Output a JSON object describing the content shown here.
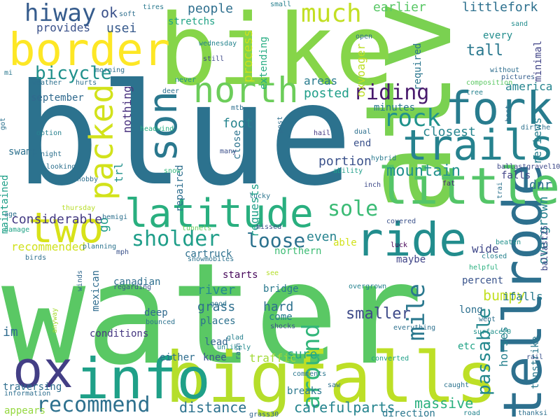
{
  "words": [
    {
      "text": "water",
      "color": "#5ac864"
    },
    {
      "text": "blue",
      "color": "#2c728e"
    },
    {
      "text": "atv",
      "color": "#7ad151"
    },
    {
      "text": "bike",
      "color": "#86d549"
    },
    {
      "text": "big",
      "color": "#b5de2b"
    },
    {
      "text": "falls",
      "color": "#bddf26"
    },
    {
      "text": "tellrode",
      "color": "#2d708e"
    },
    {
      "text": "info",
      "color": "#1fa088"
    },
    {
      "text": "border",
      "color": "#fde725"
    },
    {
      "text": "trails",
      "color": "#26828e"
    },
    {
      "text": "fork",
      "color": "#287c8e"
    },
    {
      "text": "latitude",
      "color": "#29af7f"
    },
    {
      "text": "little",
      "color": "#54c568"
    },
    {
      "text": "ride",
      "color": "#228d8d"
    },
    {
      "text": "two",
      "color": "#d8e219"
    },
    {
      "text": "ox",
      "color": "#433e85"
    },
    {
      "text": "north",
      "color": "#6ccd5a"
    },
    {
      "text": "son",
      "color": "#2a788e"
    },
    {
      "text": "packed",
      "color": "#d2e21b"
    },
    {
      "text": "hiway",
      "color": "#365c8d"
    },
    {
      "text": "much",
      "color": "#c2df23"
    },
    {
      "text": "mile",
      "color": "#2a788e"
    },
    {
      "text": "around",
      "color": "#32b67a"
    },
    {
      "text": "recommend",
      "color": "#2d708e"
    },
    {
      "text": "sholder",
      "color": "#1f9e89"
    },
    {
      "text": "loose",
      "color": "#2c728e"
    },
    {
      "text": "sole",
      "color": "#3bbb75"
    },
    {
      "text": "riding",
      "color": "#481a6c"
    },
    {
      "text": "rock",
      "color": "#20928c"
    },
    {
      "text": "mountain",
      "color": "#21918c"
    },
    {
      "text": "passable",
      "color": "#23888e"
    },
    {
      "text": "carefulparts",
      "color": "#25848e"
    },
    {
      "text": "bicycle",
      "color": "#21918c"
    },
    {
      "text": "massive",
      "color": "#2ab07f"
    },
    {
      "text": "overgrown",
      "color": "#26828e"
    },
    {
      "text": "distance",
      "color": "#2c728e"
    },
    {
      "text": "smaller",
      "color": "#3e4a89"
    },
    {
      "text": "considerable",
      "color": "#443a83"
    },
    {
      "text": "bumpy",
      "color": "#c2df23"
    },
    {
      "text": "earlier",
      "color": "#58c765"
    },
    {
      "text": "littlefork",
      "color": "#2d708e"
    },
    {
      "text": "stretchs",
      "color": "#20a386"
    },
    {
      "text": "people",
      "color": "#2e6f8e"
    },
    {
      "text": "usei",
      "color": "#375a8c"
    },
    {
      "text": "provides",
      "color": "#3b528b"
    },
    {
      "text": "ok",
      "color": "#3b528b"
    },
    {
      "text": "process",
      "color": "#c8e020"
    },
    {
      "text": "tall",
      "color": "#2a788e"
    },
    {
      "text": "america",
      "color": "#25848e"
    },
    {
      "text": "posted",
      "color": "#1f9e89"
    },
    {
      "text": "areas",
      "color": "#297b8e"
    },
    {
      "text": "september",
      "color": "#306a8e"
    },
    {
      "text": "nothing",
      "color": "#472f7d"
    },
    {
      "text": "foot",
      "color": "#25848e"
    },
    {
      "text": "closest",
      "color": "#25848e"
    },
    {
      "text": "portion",
      "color": "#3b528b"
    },
    {
      "text": "end",
      "color": "#3b528b"
    },
    {
      "text": "even",
      "color": "#25838e"
    },
    {
      "text": "requests",
      "color": "#1fa088"
    },
    {
      "text": "recommended",
      "color": "#d0e11c"
    },
    {
      "text": "cartruck",
      "color": "#2d708e"
    },
    {
      "text": "river",
      "color": "#238a8d"
    },
    {
      "text": "canadian",
      "color": "#2e6f8e"
    },
    {
      "text": "grass",
      "color": "#2e6f8e"
    },
    {
      "text": "hard",
      "color": "#2d718e"
    },
    {
      "text": "bridge",
      "color": "#29798e"
    },
    {
      "text": "northern",
      "color": "#3dbc74"
    },
    {
      "text": "maybe",
      "color": "#404588"
    },
    {
      "text": "wide",
      "color": "#3f4889"
    },
    {
      "text": "ifalls",
      "color": "#297a8e"
    },
    {
      "text": "long",
      "color": "#2d708e"
    },
    {
      "text": "horses",
      "color": "#26818e"
    },
    {
      "text": "etc",
      "color": "#20a386"
    },
    {
      "text": "sure",
      "color": "#22a785"
    },
    {
      "text": "breaks",
      "color": "#2a788e"
    },
    {
      "text": "traversing",
      "color": "#2e6e8e"
    },
    {
      "text": "traffic",
      "color": "#a2da37"
    },
    {
      "text": "conditions",
      "color": "#453781"
    },
    {
      "text": "knee",
      "color": "#39568c"
    },
    {
      "text": "either",
      "color": "#2e6d8e"
    },
    {
      "text": "lead",
      "color": "#31678e"
    },
    {
      "text": "places",
      "color": "#2c718e"
    },
    {
      "text": "deep",
      "color": "#306a8e"
    },
    {
      "text": "im",
      "color": "#2f6b8e"
    },
    {
      "text": "swamp",
      "color": "#2d718e"
    },
    {
      "text": "maintained",
      "color": "#1fa088"
    },
    {
      "text": "trl",
      "color": "#21918c"
    },
    {
      "text": "go",
      "color": "#1e9b8a"
    },
    {
      "text": "repaired",
      "color": "#2e6e8e"
    },
    {
      "text": "dnr",
      "color": "#2d708e"
    },
    {
      "text": "falls",
      "color": "#414487"
    },
    {
      "text": "reviews",
      "color": "#277f8e"
    },
    {
      "text": "minimal",
      "color": "#414487"
    },
    {
      "text": "oxvoager",
      "color": "#bddf26"
    },
    {
      "text": "required",
      "color": "#2a768e"
    },
    {
      "text": "extending",
      "color": "#25ac82"
    },
    {
      "text": "every",
      "color": "#228d8d"
    },
    {
      "text": "minutes",
      "color": "#2a788e"
    },
    {
      "text": "percent",
      "color": "#3a548c"
    },
    {
      "text": "tenstrike",
      "color": "#2a788e"
    },
    {
      "text": "mexican",
      "color": "#2f6c8e"
    },
    {
      "text": "starts",
      "color": "#46075a"
    },
    {
      "text": "come",
      "color": "#277e8e"
    },
    {
      "text": "direction",
      "color": "#2a778e"
    },
    {
      "text": "able",
      "color": "#d2e21b"
    },
    {
      "text": "close",
      "color": "#2c738e"
    },
    {
      "text": "overgrown",
      "color": "#26828e"
    },
    {
      "text": "thursday",
      "color": "#b8de29"
    },
    {
      "text": "ballastgravel10",
      "color": "#3e4989"
    },
    {
      "text": "ballast25",
      "color": "#3f4788"
    },
    {
      "text": "closed",
      "color": "#26828e"
    },
    {
      "text": "helpful",
      "color": "#2ab07f"
    },
    {
      "text": "beaten",
      "color": "#21918c"
    },
    {
      "text": "covered",
      "color": "#3b528b"
    },
    {
      "text": "luck",
      "color": "#440154"
    },
    {
      "text": "fat",
      "color": "#482576"
    },
    {
      "text": "inch",
      "color": "#3e4a89"
    },
    {
      "text": "ability",
      "color": "#1f9e89"
    },
    {
      "text": "hybrid",
      "color": "#297a8e"
    },
    {
      "text": "dual",
      "color": "#2d708e"
    },
    {
      "text": "hail",
      "color": "#453882"
    },
    {
      "text": "dirtthe",
      "color": "#2d718e"
    },
    {
      "text": "best",
      "color": "#2e6f8e"
    },
    {
      "text": "tree",
      "color": "#26828e"
    },
    {
      "text": "composition",
      "color": "#5cc863"
    },
    {
      "text": "pictures",
      "color": "#355f8d"
    },
    {
      "text": "without",
      "color": "#2e6e8e"
    },
    {
      "text": "sand",
      "color": "#228c8d"
    },
    {
      "text": "open",
      "color": "#2e6e8e"
    },
    {
      "text": "small",
      "color": "#27808e"
    },
    {
      "text": "tires",
      "color": "#29798e"
    },
    {
      "text": "soft",
      "color": "#2e6f8e"
    },
    {
      "text": "wednesday",
      "color": "#25848e"
    },
    {
      "text": "still",
      "color": "#3e4989"
    },
    {
      "text": "never",
      "color": "#21918c"
    },
    {
      "text": "deer",
      "color": "#2d718e"
    },
    {
      "text": "mtb",
      "color": "#2e6f8e"
    },
    {
      "text": "many",
      "color": "#3c508b"
    },
    {
      "text": "post",
      "color": "#2e6f8e"
    },
    {
      "text": "snow",
      "color": "#32b67a"
    },
    {
      "text": "lucky",
      "color": "#2b748e"
    },
    {
      "text": "tunnels",
      "color": "#6ccd5a"
    },
    {
      "text": "snowmobiles",
      "color": "#2c728e"
    },
    {
      "text": "missed",
      "color": "#3b528b"
    },
    {
      "text": "see",
      "color": "#b5de2b"
    },
    {
      "text": "good",
      "color": "#2c738e"
    },
    {
      "text": "shocks",
      "color": "#3b528b"
    },
    {
      "text": "unlikely",
      "color": "#238a8d"
    },
    {
      "text": "glad",
      "color": "#27808e"
    },
    {
      "text": "rain",
      "color": "#2d708e"
    },
    {
      "text": "regarding",
      "color": "#3b528b"
    },
    {
      "text": "bounced",
      "color": "#2c728e"
    },
    {
      "text": "winds",
      "color": "#31688e"
    },
    {
      "text": "anyway",
      "color": "#a8db34"
    },
    {
      "text": "information",
      "color": "#2e6e8e"
    },
    {
      "text": "appears",
      "color": "#95d840"
    },
    {
      "text": "grass30",
      "color": "#32658e"
    },
    {
      "text": "converted",
      "color": "#1fa088"
    },
    {
      "text": "saw",
      "color": "#2d718e"
    },
    {
      "text": "comments",
      "color": "#2a768e"
    },
    {
      "text": "caught",
      "color": "#2c738e"
    },
    {
      "text": "road",
      "color": "#25848e"
    },
    {
      "text": "thanksi",
      "color": "#2d708e"
    },
    {
      "text": "everything",
      "color": "#2d708e"
    },
    {
      "text": "surface20",
      "color": "#21918c"
    },
    {
      "text": "went",
      "color": "#2d718e"
    },
    {
      "text": "rail",
      "color": "#3b528b"
    },
    {
      "text": "trai",
      "color": "#2c738e"
    },
    {
      "text": "mph",
      "color": "#3b528b"
    },
    {
      "text": "planning",
      "color": "#2c738e"
    },
    {
      "text": "birds",
      "color": "#2e6f8e"
    },
    {
      "text": "damage",
      "color": "#20a386"
    },
    {
      "text": "age",
      "color": "#2d718e"
    },
    {
      "text": "nobby",
      "color": "#2e6f8e"
    },
    {
      "text": "bemigi",
      "color": "#2d708e"
    },
    {
      "text": "looking",
      "color": "#2d708e"
    },
    {
      "text": "night",
      "color": "#2d718e"
    },
    {
      "text": "option",
      "color": "#27808e"
    },
    {
      "text": "weather",
      "color": "#2d708e"
    },
    {
      "text": "hurts",
      "color": "#2e6f8e"
    },
    {
      "text": "morning",
      "color": "#2e6f8e"
    },
    {
      "text": "headwind",
      "color": "#26ad81"
    },
    {
      "text": "mi",
      "color": "#2a788e"
    },
    {
      "text": "got",
      "color": "#2c728e"
    },
    {
      "text": "international",
      "color": "#29798e"
    }
  ]
}
